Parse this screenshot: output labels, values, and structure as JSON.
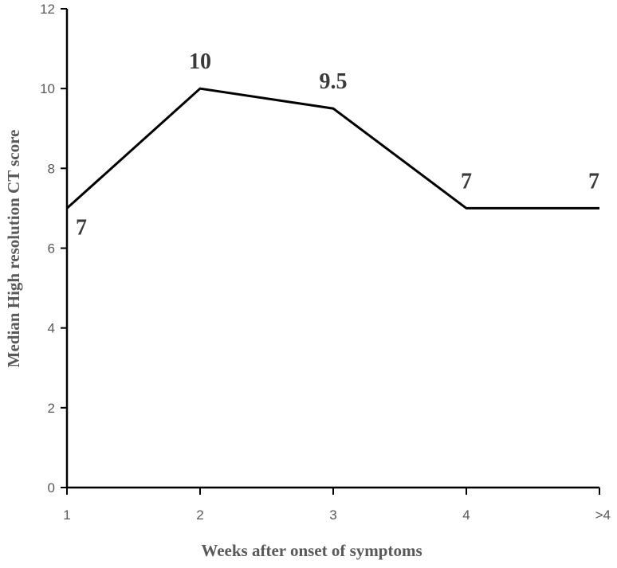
{
  "chart_data": {
    "type": "line",
    "title": "",
    "xlabel": "Weeks after onset of symptoms",
    "ylabel": "Median High resolution CT score",
    "categories": [
      "1",
      "2",
      "3",
      "4",
      ">4"
    ],
    "values": [
      7,
      10,
      9.5,
      7,
      7
    ],
    "data_labels": [
      "7",
      "10",
      "9.5",
      "7",
      "7"
    ],
    "yticks": [
      "0",
      "2",
      "4",
      "6",
      "8",
      "10",
      "12"
    ],
    "ylim": [
      0,
      12
    ],
    "grid": false,
    "legend": "none",
    "colors": {
      "line": "#000000",
      "axis": "#000000",
      "tick_text": "#595959",
      "axis_title": "#595959",
      "data_label": "#3a3a3a"
    }
  }
}
